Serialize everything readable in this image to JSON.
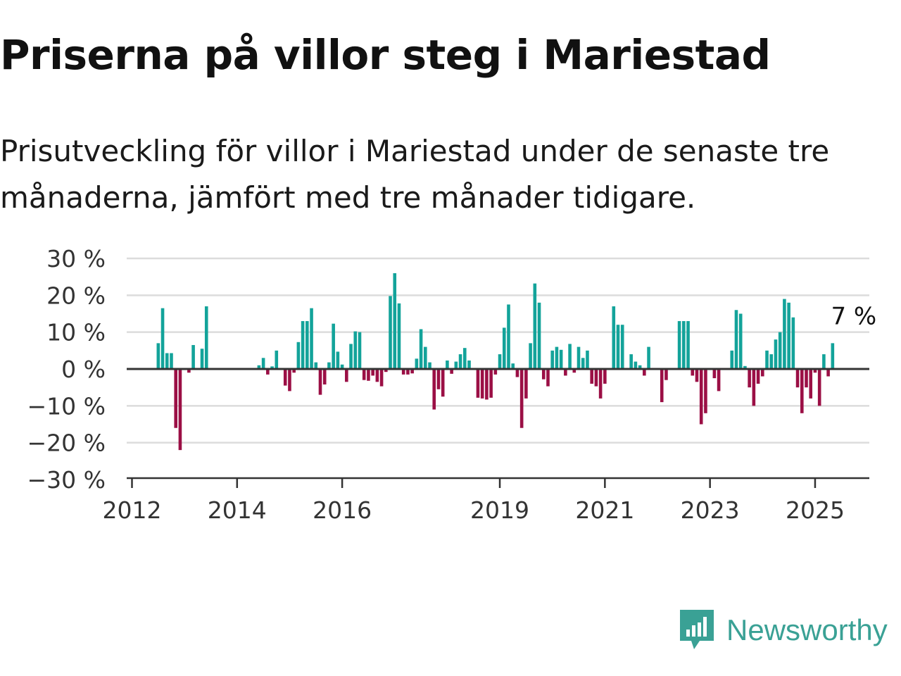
{
  "title": "Priserna på villor steg i Mariestad",
  "subtitle": "Prisutveckling för villor i Mariestad under de senaste tre månaderna, jämfört med tre månader tidigare.",
  "brand": {
    "name": "Newsworthy",
    "icon": "newsworthy-logo-icon"
  },
  "colors": {
    "positive": "#13a39a",
    "negative": "#9b0f45",
    "grid": "#dcdcdc",
    "axis": "#333333"
  },
  "chart_data": {
    "type": "bar",
    "title": "Priserna på villor steg i Mariestad",
    "xlabel": "",
    "ylabel": "",
    "ylim": [
      -30,
      30
    ],
    "y_ticks": [
      30,
      20,
      10,
      0,
      -10,
      -20,
      -30
    ],
    "y_tick_labels": [
      "30 %",
      "20 %",
      "10 %",
      "0 %",
      "−10 %",
      "−20 %",
      "−30 %"
    ],
    "x_ticks": [
      2012,
      2014,
      2016,
      2019,
      2021,
      2023,
      2025
    ],
    "x_tick_labels": [
      "2012",
      "2014",
      "2016",
      "2019",
      "2021",
      "2023",
      "2025"
    ],
    "grid": true,
    "last_value_label": "7 %",
    "series": [
      {
        "x": [
          "2012-07",
          "2012-08",
          "2012-09",
          "2012-10",
          "2012-11",
          "2012-12",
          "2013-01",
          "2013-02",
          "2013-03",
          "2013-04",
          "2013-05",
          "2013-06",
          "2013-07",
          "2013-08",
          "2013-09",
          "2013-10",
          "2013-11",
          "2013-12",
          "2014-01",
          "2014-02",
          "2014-03",
          "2014-04",
          "2014-05",
          "2014-06",
          "2014-07",
          "2014-08",
          "2014-09",
          "2014-10",
          "2014-11",
          "2014-12",
          "2015-01",
          "2015-02",
          "2015-03",
          "2015-04",
          "2015-05",
          "2015-06",
          "2015-07",
          "2015-08",
          "2015-09",
          "2015-10",
          "2015-11",
          "2015-12",
          "2016-01",
          "2016-02",
          "2016-03",
          "2016-04",
          "2016-05",
          "2016-06",
          "2016-07",
          "2016-08",
          "2016-09",
          "2016-10",
          "2016-11",
          "2016-12",
          "2017-01",
          "2017-02",
          "2017-03",
          "2017-04",
          "2017-05",
          "2017-06",
          "2017-07",
          "2017-08",
          "2017-09",
          "2017-10",
          "2017-11",
          "2017-12",
          "2018-01",
          "2018-02",
          "2018-03",
          "2018-04",
          "2018-05",
          "2018-06",
          "2018-07",
          "2018-08",
          "2018-09",
          "2018-10",
          "2018-11",
          "2018-12",
          "2019-01",
          "2019-02",
          "2019-03",
          "2019-04",
          "2019-05",
          "2019-06",
          "2019-07",
          "2019-08",
          "2019-09",
          "2019-10",
          "2019-11",
          "2019-12",
          "2020-01",
          "2020-02",
          "2020-03",
          "2020-04",
          "2020-05",
          "2020-06",
          "2020-07",
          "2020-08",
          "2020-09",
          "2020-10",
          "2020-11",
          "2020-12",
          "2021-01",
          "2021-02",
          "2021-03",
          "2021-04",
          "2021-05",
          "2021-06",
          "2021-07",
          "2021-08",
          "2021-09",
          "2021-10",
          "2021-11",
          "2021-12",
          "2022-01",
          "2022-02",
          "2022-03",
          "2022-04",
          "2022-05",
          "2022-06",
          "2022-07",
          "2022-08",
          "2022-09",
          "2022-10",
          "2022-11",
          "2022-12",
          "2023-01",
          "2023-02",
          "2023-03",
          "2023-04",
          "2023-05",
          "2023-06",
          "2023-07",
          "2023-08",
          "2023-09",
          "2023-10",
          "2023-11",
          "2023-12",
          "2024-01",
          "2024-02",
          "2024-03",
          "2024-04",
          "2024-05",
          "2024-06",
          "2024-07",
          "2024-08",
          "2024-09",
          "2024-10",
          "2024-11",
          "2024-12",
          "2025-01",
          "2025-02",
          "2025-03",
          "2025-04",
          "2025-05"
        ],
        "values": [
          7,
          16.5,
          4.3,
          4.3,
          -16,
          -22,
          null,
          -1,
          6.5,
          null,
          5.5,
          17,
          null,
          null,
          null,
          null,
          null,
          null,
          null,
          null,
          null,
          null,
          null,
          1,
          3,
          -1.5,
          0.7,
          5,
          null,
          -4.5,
          -6,
          -1,
          7.3,
          13,
          13,
          16.5,
          1.8,
          -7,
          -4.2,
          1.8,
          12.3,
          4.7,
          1.2,
          -3.5,
          6.8,
          10.2,
          10,
          -3,
          -3.2,
          -1.8,
          -3.5,
          -4.7,
          -0.8,
          19.8,
          26,
          17.8,
          -1.5,
          -1.5,
          -1.2,
          2.8,
          10.8,
          6,
          1.8,
          -11,
          -5.5,
          -7.5,
          2.3,
          -1.3,
          2,
          4,
          5.7,
          2.3,
          null,
          -7.8,
          -8,
          -8.3,
          -7.8,
          -1.5,
          4,
          11.2,
          17.5,
          1.5,
          -2.2,
          -16,
          -8,
          7,
          23.2,
          18,
          -2.8,
          -4.7,
          5,
          6,
          5.2,
          -1.8,
          6.8,
          -1,
          6,
          3,
          5,
          -4,
          -4.7,
          -8,
          -4,
          null,
          17,
          12,
          12,
          null,
          4,
          2,
          1,
          -1.8,
          6,
          null,
          null,
          -9,
          -3,
          null,
          null,
          13,
          13,
          13,
          -1.8,
          -3.5,
          -15,
          -12,
          null,
          -2.5,
          -6,
          null,
          null,
          5,
          16,
          15,
          0.8,
          -5,
          -10,
          -4,
          -2,
          5,
          4,
          8,
          10,
          19,
          18,
          14,
          -5,
          -12,
          -5,
          -8,
          -1,
          -10,
          4,
          -2,
          7
        ]
      }
    ]
  }
}
